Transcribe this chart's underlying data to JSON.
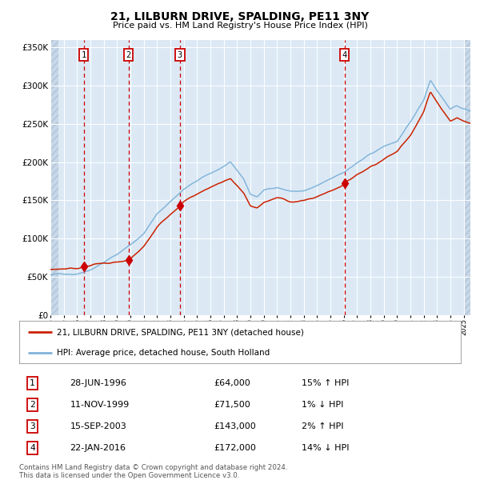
{
  "title": "21, LILBURN DRIVE, SPALDING, PE11 3NY",
  "subtitle": "Price paid vs. HM Land Registry's House Price Index (HPI)",
  "background_color": "#dce9f5",
  "red_line_label": "21, LILBURN DRIVE, SPALDING, PE11 3NY (detached house)",
  "blue_line_label": "HPI: Average price, detached house, South Holland",
  "footer": "Contains HM Land Registry data © Crown copyright and database right 2024.\nThis data is licensed under the Open Government Licence v3.0.",
  "transactions": [
    {
      "num": 1,
      "date": "28-JUN-1996",
      "price": 64000,
      "hpi_rel": "15% ↑ HPI",
      "x_year": 1996.49
    },
    {
      "num": 2,
      "date": "11-NOV-1999",
      "price": 71500,
      "hpi_rel": "1% ↓ HPI",
      "x_year": 1999.86
    },
    {
      "num": 3,
      "date": "15-SEP-2003",
      "price": 143000,
      "hpi_rel": "2% ↑ HPI",
      "x_year": 2003.71
    },
    {
      "num": 4,
      "date": "22-JAN-2016",
      "price": 172000,
      "hpi_rel": "14% ↓ HPI",
      "x_year": 2016.06
    }
  ],
  "ylim": [
    0,
    360000
  ],
  "xlim_start": 1994.0,
  "xlim_end": 2025.5,
  "yticks": [
    0,
    50000,
    100000,
    150000,
    200000,
    250000,
    300000,
    350000
  ],
  "ytick_labels": [
    "£0",
    "£50K",
    "£100K",
    "£150K",
    "£200K",
    "£250K",
    "£300K",
    "£350K"
  ]
}
